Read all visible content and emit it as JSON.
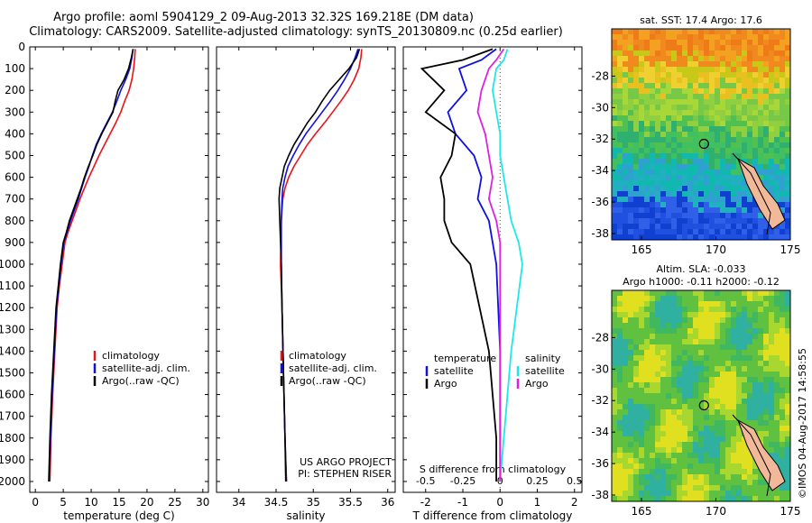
{
  "header": {
    "title_line1": "Argo profile: aoml 5904129_2 09-Aug-2013 32.32S 169.218E (DM data)",
    "title_line2": "Climatology: CARS2009. Satellite-adjusted climatology: synTS_20130809.nc (0.25d earlier)"
  },
  "credit": "©IMOS 04-Aug-2017 14:58:55",
  "colors": {
    "red": "#e8141a",
    "blue": "#1010e0",
    "black": "#000000",
    "cyan": "#1ee8e8",
    "magenta": "#e020e0"
  },
  "chart_data": [
    {
      "type": "line",
      "xlabel": "temperature (deg C)",
      "ylim": [
        2050,
        0
      ],
      "xlim": [
        -1,
        31
      ],
      "xticks": [
        "0",
        "5",
        "10",
        "15",
        "20",
        "25",
        "30"
      ],
      "yticks": [
        "0",
        "100",
        "200",
        "300",
        "400",
        "500",
        "600",
        "700",
        "800",
        "900",
        "1000",
        "1100",
        "1200",
        "1300",
        "1400",
        "1500",
        "1600",
        "1700",
        "1800",
        "1900",
        "2000"
      ],
      "legend": [
        "climatology",
        "satellite-adj. clim.",
        "Argo(..raw -QC)"
      ],
      "series": [
        {
          "name": "climatology",
          "color": "red",
          "x": [
            17.9,
            17.8,
            17.6,
            17.3,
            16.8,
            16.0,
            15.3,
            14.4,
            13.4,
            12.4,
            11.4,
            10.5,
            9.6,
            8.8,
            8.0,
            7.3,
            6.6,
            5.9,
            5.3,
            4.8,
            4.3,
            3.9,
            3.5,
            3.1,
            2.8,
            2.6
          ],
          "y": [
            10,
            50,
            100,
            150,
            200,
            250,
            300,
            350,
            400,
            450,
            500,
            550,
            600,
            650,
            700,
            750,
            800,
            850,
            900,
            1000,
            1100,
            1200,
            1400,
            1600,
            1800,
            2000
          ]
        },
        {
          "name": "satellite-adj. clim.",
          "color": "blue",
          "x": [
            17.5,
            17.3,
            16.9,
            16.2,
            15.3,
            14.6,
            13.8,
            12.8,
            11.8,
            10.9,
            10.2,
            9.6,
            8.9,
            8.3,
            7.7,
            7.0,
            6.3,
            5.7,
            5.1,
            4.6,
            4.2,
            3.8,
            3.4,
            3.0,
            2.7,
            2.5
          ],
          "y": [
            10,
            50,
            100,
            150,
            200,
            250,
            300,
            350,
            400,
            450,
            500,
            550,
            600,
            650,
            700,
            750,
            800,
            850,
            900,
            1000,
            1100,
            1200,
            1400,
            1600,
            1800,
            2000
          ]
        },
        {
          "name": "Argo(..raw -QC)",
          "color": "black",
          "x": [
            17.5,
            17.2,
            16.7,
            15.9,
            14.8,
            14.3,
            13.9,
            12.9,
            11.9,
            11.0,
            10.3,
            9.5,
            8.8,
            8.2,
            7.5,
            6.8,
            6.1,
            5.6,
            5.0,
            4.5,
            4.1,
            3.7,
            3.3,
            2.9,
            2.6,
            2.4
          ],
          "y": [
            10,
            50,
            100,
            150,
            200,
            250,
            300,
            350,
            400,
            450,
            500,
            550,
            600,
            650,
            700,
            750,
            800,
            850,
            900,
            1000,
            1100,
            1200,
            1400,
            1600,
            1800,
            2000
          ]
        }
      ]
    },
    {
      "type": "line",
      "xlabel": "salinity",
      "ylim": [
        2050,
        0
      ],
      "xlim": [
        33.7,
        36.1
      ],
      "xticks": [
        "34",
        "34.5",
        "35",
        "35.5",
        "36"
      ],
      "legend": [
        "climatology",
        "satellite-adj. clim.",
        "Argo(..raw -QC)"
      ],
      "annotation": [
        "US ARGO PROJECT",
        "PI: STEPHEN RISER"
      ],
      "series": [
        {
          "name": "climatology",
          "color": "red",
          "x": [
            35.65,
            35.64,
            35.61,
            35.55,
            35.47,
            35.37,
            35.26,
            35.15,
            35.03,
            34.92,
            34.83,
            34.74,
            34.67,
            34.62,
            34.59,
            34.57,
            34.56,
            34.58,
            34.6,
            34.62,
            34.64
          ],
          "y": [
            10,
            50,
            100,
            150,
            200,
            250,
            300,
            350,
            400,
            450,
            500,
            550,
            600,
            650,
            700,
            800,
            1000,
            1200,
            1500,
            1800,
            2000
          ]
        },
        {
          "name": "satellite-adj. clim.",
          "color": "blue",
          "x": [
            35.6,
            35.56,
            35.5,
            35.42,
            35.33,
            35.23,
            35.12,
            35.01,
            34.9,
            34.81,
            34.73,
            34.66,
            34.62,
            34.59,
            34.58,
            34.57,
            34.57,
            34.58,
            34.6,
            34.62,
            34.64
          ],
          "y": [
            10,
            50,
            100,
            150,
            200,
            250,
            300,
            350,
            400,
            450,
            500,
            550,
            600,
            650,
            700,
            800,
            1000,
            1200,
            1500,
            1800,
            2000
          ]
        },
        {
          "name": "Argo(..raw -QC)",
          "color": "black",
          "x": [
            35.62,
            35.58,
            35.48,
            35.35,
            35.22,
            35.12,
            35.03,
            34.92,
            34.83,
            34.74,
            34.67,
            34.61,
            34.58,
            34.55,
            34.54,
            34.55,
            34.57,
            34.58,
            34.6,
            34.62,
            34.63
          ],
          "y": [
            10,
            50,
            100,
            150,
            200,
            250,
            300,
            350,
            400,
            450,
            500,
            550,
            600,
            650,
            700,
            800,
            1000,
            1200,
            1500,
            1800,
            2000
          ]
        }
      ]
    },
    {
      "type": "line",
      "xlabel": "T difference from climatology",
      "top_axis_label": "S difference from climatology",
      "ylim": [
        2050,
        0
      ],
      "xlim": [
        -2.6,
        2.2
      ],
      "xticks": [
        "-2",
        "-1",
        "0",
        "1",
        "2"
      ],
      "top_xticks": [
        "-0.5",
        "-0.25",
        "0",
        "0.25",
        "0.5"
      ],
      "legend_temperature": [
        "temperature",
        "satellite",
        "Argo"
      ],
      "legend_salinity": [
        "salinity",
        "satellite",
        "Argo"
      ],
      "series": [
        {
          "name": "satellite",
          "color": "blue",
          "x": [
            -0.1,
            -0.5,
            -1.1,
            -0.9,
            -1.4,
            -1.2,
            -0.7,
            -0.5,
            -0.6,
            -0.3,
            -0.2,
            -0.1,
            0.0,
            0.0,
            0.0
          ],
          "y": [
            10,
            60,
            100,
            200,
            300,
            400,
            500,
            600,
            700,
            800,
            900,
            1000,
            1400,
            1800,
            2000
          ]
        },
        {
          "name": "Argo",
          "color": "black",
          "x": [
            -0.2,
            -1.0,
            -2.1,
            -1.5,
            -2.0,
            -1.2,
            -1.3,
            -1.6,
            -1.5,
            -1.5,
            -1.3,
            -0.8,
            -0.3,
            -0.1,
            -0.1
          ],
          "y": [
            10,
            60,
            100,
            200,
            300,
            400,
            500,
            600,
            700,
            800,
            900,
            1000,
            1400,
            1800,
            2000
          ]
        },
        {
          "name": "satellite",
          "color": "cyan",
          "x": [
            0.2,
            0.1,
            -0.1,
            -0.2,
            -0.1,
            0.0,
            0.0,
            0.1,
            0.2,
            0.3,
            0.5,
            0.6,
            0.3,
            0.1,
            0.0
          ],
          "y": [
            10,
            60,
            100,
            200,
            300,
            400,
            500,
            600,
            700,
            800,
            900,
            1000,
            1400,
            1800,
            2000
          ]
        },
        {
          "name": "Argo",
          "color": "magenta",
          "x": [
            0.1,
            -0.1,
            -0.3,
            -0.5,
            -0.6,
            -0.4,
            -0.3,
            -0.2,
            -0.3,
            -0.1,
            0.0,
            0.0,
            0.0,
            0.0,
            0.0
          ],
          "y": [
            10,
            60,
            100,
            200,
            300,
            400,
            500,
            600,
            700,
            800,
            900,
            1000,
            1400,
            1800,
            2000
          ]
        }
      ]
    },
    {
      "type": "heatmap",
      "title": "sat. SST: 17.4  Argo: 17.6",
      "xticks": [
        "165",
        "170",
        "175"
      ],
      "yticks": [
        "-28",
        "-30",
        "-32",
        "-34",
        "-36",
        "-38"
      ],
      "marker": {
        "lon": 169.2,
        "lat": -32.3
      }
    },
    {
      "type": "heatmap",
      "title_line1": "Altim. SLA: -0.033",
      "title_line2": "Argo h1000: -0.11 h2000: -0.12",
      "xticks": [
        "165",
        "170",
        "175"
      ],
      "yticks": [
        "-28",
        "-30",
        "-32",
        "-34",
        "-36",
        "-38"
      ],
      "marker": {
        "lon": 169.2,
        "lat": -32.3
      }
    }
  ]
}
